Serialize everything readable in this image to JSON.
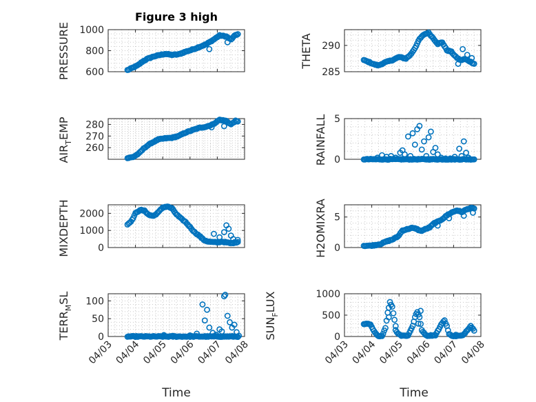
{
  "figure": {
    "title": "Figure 3 high",
    "marker_color": "#0072bd",
    "axis_color": "#262626",
    "grid_color": "#c8c8c8",
    "sample_interval_days": 0.0417
  },
  "chart_data": [
    {
      "type": "scatter",
      "id": "pressure",
      "title": "Figure 3 high",
      "ylabel": "PRESSURE",
      "ylim": [
        600,
        1000
      ],
      "yticks": [
        600,
        800,
        1000
      ],
      "xlabel": "",
      "grid": true,
      "x_start": "04/03 17:00",
      "x_end": "04/07 19:00",
      "xlim": [
        "04/03",
        "04/08"
      ],
      "profile": [
        [
          "04/03 17:00",
          615
        ],
        [
          "04/03 21:00",
          635
        ],
        [
          "04/04 02:00",
          660
        ],
        [
          "04/04 06:00",
          695
        ],
        [
          "04/04 10:00",
          720
        ],
        [
          "04/04 16:00",
          745
        ],
        [
          "04/04 22:00",
          760
        ],
        [
          "04/05 02:00",
          770
        ],
        [
          "04/05 08:00",
          760
        ],
        [
          "04/05 14:00",
          765
        ],
        [
          "04/05 20:00",
          790
        ],
        [
          "04/06 02:00",
          810
        ],
        [
          "04/06 08:00",
          835
        ],
        [
          "04/06 14:00",
          860
        ],
        [
          "04/06 20:00",
          900
        ],
        [
          "04/07 02:00",
          945
        ],
        [
          "04/07 08:00",
          935
        ],
        [
          "04/07 12:00",
          905
        ],
        [
          "04/07 16:00",
          950
        ],
        [
          "04/07 19:00",
          960
        ]
      ],
      "outliers": [
        [
          "04/06 17:00",
          815
        ],
        [
          "04/07 09:00",
          880
        ]
      ]
    },
    {
      "type": "scatter",
      "id": "theta",
      "ylabel": "THETA",
      "ylim": [
        285,
        293
      ],
      "yticks": [
        285,
        290
      ],
      "xlabel": "",
      "grid": true,
      "x_start": "04/03 17:00",
      "x_end": "04/07 19:00",
      "xlim": [
        "04/03",
        "04/08"
      ],
      "profile": [
        [
          "04/03 17:00",
          287.2
        ],
        [
          "04/03 22:00",
          286.8
        ],
        [
          "04/04 02:00",
          286.4
        ],
        [
          "04/04 06:00",
          286.2
        ],
        [
          "04/04 12:00",
          286.8
        ],
        [
          "04/04 18:00",
          287.2
        ],
        [
          "04/05 00:00",
          287.8
        ],
        [
          "04/05 06:00",
          287.5
        ],
        [
          "04/05 10:00",
          288.2
        ],
        [
          "04/05 14:00",
          289.5
        ],
        [
          "04/05 18:00",
          291.2
        ],
        [
          "04/05 22:00",
          292.1
        ],
        [
          "04/06 02:00",
          292.4
        ],
        [
          "04/06 06:00",
          291.4
        ],
        [
          "04/06 10:00",
          290.3
        ],
        [
          "04/06 14:00",
          290.6
        ],
        [
          "04/06 18:00",
          289.1
        ],
        [
          "04/06 22:00",
          288.8
        ],
        [
          "04/07 02:00",
          287.8
        ],
        [
          "04/07 06:00",
          287.2
        ],
        [
          "04/07 10:00",
          287.4
        ],
        [
          "04/07 14:00",
          287.0
        ],
        [
          "04/07 19:00",
          286.4
        ]
      ],
      "outliers": [
        [
          "04/07 04:00",
          286.5
        ],
        [
          "04/07 08:00",
          289.3
        ],
        [
          "04/07 12:00",
          288.2
        ],
        [
          "04/07 16:00",
          287.6
        ]
      ]
    },
    {
      "type": "scatter",
      "id": "airtemp",
      "ylabel_main": "AIR",
      "ylabel_sub": "T",
      "ylabel_tail": "EMP",
      "ylim": [
        250,
        285
      ],
      "yticks": [
        260,
        270,
        280
      ],
      "xlabel": "",
      "grid": true,
      "x_start": "04/03 17:00",
      "x_end": "04/07 19:00",
      "xlim": [
        "04/03",
        "04/08"
      ],
      "profile": [
        [
          "04/03 17:00",
          251
        ],
        [
          "04/03 22:00",
          252
        ],
        [
          "04/04 03:00",
          255
        ],
        [
          "04/04 08:00",
          260
        ],
        [
          "04/04 14:00",
          264
        ],
        [
          "04/04 20:00",
          267
        ],
        [
          "04/05 02:00",
          268
        ],
        [
          "04/05 08:00",
          268.5
        ],
        [
          "04/05 14:00",
          270
        ],
        [
          "04/05 20:00",
          273
        ],
        [
          "04/06 02:00",
          275
        ],
        [
          "04/06 08:00",
          277
        ],
        [
          "04/06 14:00",
          278
        ],
        [
          "04/06 20:00",
          280
        ],
        [
          "04/07 02:00",
          284
        ],
        [
          "04/07 08:00",
          283
        ],
        [
          "04/07 12:00",
          280
        ],
        [
          "04/07 16:00",
          283
        ],
        [
          "04/07 19:00",
          282
        ]
      ],
      "outliers": [
        [
          "04/06 19:00",
          277.5
        ],
        [
          "04/07 06:00",
          278.5
        ]
      ]
    },
    {
      "type": "scatter",
      "id": "rainfall",
      "ylabel": "RAINFALL",
      "ylim": [
        0,
        5
      ],
      "yticks": [
        0,
        5
      ],
      "xlabel": "",
      "grid": true,
      "x_start": "04/03 17:00",
      "x_end": "04/07 19:00",
      "xlim": [
        "04/03",
        "04/08"
      ],
      "profile": [
        [
          "04/03 17:00",
          0
        ],
        [
          "04/07 19:00",
          0
        ]
      ],
      "outliers": [
        [
          "04/04 05:00",
          0.2
        ],
        [
          "04/04 09:00",
          0.5
        ],
        [
          "04/04 13:00",
          0.3
        ],
        [
          "04/04 17:00",
          0.4
        ],
        [
          "04/04 21:00",
          0.2
        ],
        [
          "04/05 01:00",
          0.8
        ],
        [
          "04/05 03:00",
          1.1
        ],
        [
          "04/05 05:00",
          0.6
        ],
        [
          "04/05 08:00",
          2.8
        ],
        [
          "04/05 10:00",
          0.4
        ],
        [
          "04/05 12:00",
          3.2
        ],
        [
          "04/05 14:00",
          1.8
        ],
        [
          "04/05 16:00",
          3.7
        ],
        [
          "04/05 18:00",
          4.1
        ],
        [
          "04/05 20:00",
          1.2
        ],
        [
          "04/05 22:00",
          2.2
        ],
        [
          "04/06 00:00",
          0.4
        ],
        [
          "04/06 02:00",
          2.7
        ],
        [
          "04/06 04:00",
          3.4
        ],
        [
          "04/06 06:00",
          0.9
        ],
        [
          "04/06 08:00",
          1.4
        ],
        [
          "04/06 10:00",
          0.6
        ],
        [
          "04/06 13:00",
          0.2
        ],
        [
          "04/06 17:00",
          0.1
        ],
        [
          "04/06 21:00",
          0.1
        ],
        [
          "04/07 01:00",
          0.3
        ],
        [
          "04/07 05:00",
          1.3
        ],
        [
          "04/07 07:00",
          0.4
        ],
        [
          "04/07 09:00",
          2.2
        ],
        [
          "04/07 11:00",
          0.8
        ],
        [
          "04/07 13:00",
          0.2
        ]
      ]
    },
    {
      "type": "scatter",
      "id": "mixdepth",
      "ylabel": "MIXDEPTH",
      "ylim": [
        0,
        2500
      ],
      "yticks": [
        0,
        1000,
        2000
      ],
      "xlabel": "",
      "grid": true,
      "x_start": "04/03 17:00",
      "x_end": "04/07 19:00",
      "xlim": [
        "04/03",
        "04/08"
      ],
      "profile": [
        [
          "04/03 17:00",
          1350
        ],
        [
          "04/03 21:00",
          1600
        ],
        [
          "04/04 00:00",
          2000
        ],
        [
          "04/04 04:00",
          2200
        ],
        [
          "04/04 08:00",
          2150
        ],
        [
          "04/04 12:00",
          1900
        ],
        [
          "04/04 16:00",
          1850
        ],
        [
          "04/04 20:00",
          2050
        ],
        [
          "04/05 00:00",
          2350
        ],
        [
          "04/05 04:00",
          2400
        ],
        [
          "04/05 08:00",
          2300
        ],
        [
          "04/05 12:00",
          1950
        ],
        [
          "04/05 16:00",
          1700
        ],
        [
          "04/05 20:00",
          1500
        ],
        [
          "04/06 00:00",
          1200
        ],
        [
          "04/06 04:00",
          900
        ],
        [
          "04/06 08:00",
          700
        ],
        [
          "04/06 12:00",
          450
        ],
        [
          "04/06 16:00",
          350
        ],
        [
          "04/06 20:00",
          320
        ],
        [
          "04/07 00:00",
          300
        ],
        [
          "04/07 04:00",
          350
        ],
        [
          "04/07 08:00",
          300
        ],
        [
          "04/07 12:00",
          250
        ],
        [
          "04/07 16:00",
          300
        ],
        [
          "04/07 19:00",
          350
        ]
      ],
      "outliers": [
        [
          "04/06 21:00",
          800
        ],
        [
          "04/07 02:00",
          600
        ],
        [
          "04/07 06:00",
          900
        ],
        [
          "04/07 08:00",
          1300
        ],
        [
          "04/07 10:00",
          1100
        ],
        [
          "04/07 12:00",
          700
        ],
        [
          "04/07 14:00",
          500
        ],
        [
          "04/07 18:00",
          450
        ]
      ]
    },
    {
      "type": "scatter",
      "id": "h2omixra",
      "ylabel": "H2OMIXRA",
      "ylim": [
        0,
        7
      ],
      "yticks": [
        0,
        5
      ],
      "xlabel": "",
      "grid": true,
      "x_start": "04/03 17:00",
      "x_end": "04/07 19:00",
      "xlim": [
        "04/03",
        "04/08"
      ],
      "profile": [
        [
          "04/03 17:00",
          0.3
        ],
        [
          "04/03 22:00",
          0.3
        ],
        [
          "04/04 03:00",
          0.4
        ],
        [
          "04/04 08:00",
          0.6
        ],
        [
          "04/04 13:00",
          1.0
        ],
        [
          "04/04 18:00",
          1.3
        ],
        [
          "04/04 23:00",
          1.8
        ],
        [
          "04/05 03:00",
          2.8
        ],
        [
          "04/05 07:00",
          3.0
        ],
        [
          "04/05 11:00",
          3.2
        ],
        [
          "04/05 15:00",
          3.1
        ],
        [
          "04/05 19:00",
          2.7
        ],
        [
          "04/05 23:00",
          3.0
        ],
        [
          "04/06 03:00",
          3.3
        ],
        [
          "04/06 07:00",
          4.0
        ],
        [
          "04/06 11:00",
          4.3
        ],
        [
          "04/06 15:00",
          4.8
        ],
        [
          "04/06 19:00",
          5.4
        ],
        [
          "04/06 23:00",
          5.8
        ],
        [
          "04/07 03:00",
          6.1
        ],
        [
          "04/07 07:00",
          5.8
        ],
        [
          "04/07 11:00",
          6.2
        ],
        [
          "04/07 15:00",
          6.5
        ],
        [
          "04/07 19:00",
          6.3
        ]
      ],
      "outliers": [
        [
          "04/06 10:00",
          3.6
        ],
        [
          "04/06 20:00",
          4.8
        ],
        [
          "04/07 09:00",
          5.2
        ],
        [
          "04/07 17:00",
          5.7
        ]
      ]
    },
    {
      "type": "scatter",
      "id": "terrmsl",
      "ylabel_main": "TERR",
      "ylabel_sub": "M",
      "ylabel_tail": "SL",
      "ylim": [
        0,
        120
      ],
      "yticks": [
        0,
        50,
        100
      ],
      "xlabel": "Time",
      "grid": true,
      "x_start": "04/03 17:00",
      "x_end": "04/07 19:00",
      "xlim": [
        "04/03",
        "04/08"
      ],
      "xticks": [
        "04/03",
        "04/04",
        "04/05",
        "04/06",
        "04/07",
        "04/08"
      ],
      "profile": [
        [
          "04/03 17:00",
          0
        ],
        [
          "04/07 19:00",
          0
        ]
      ],
      "outliers": [
        [
          "04/05 01:00",
          4
        ],
        [
          "04/05 09:00",
          2
        ],
        [
          "04/06 00:00",
          3
        ],
        [
          "04/06 06:00",
          8
        ],
        [
          "04/06 11:00",
          90
        ],
        [
          "04/06 13:00",
          45
        ],
        [
          "04/06 15:00",
          75
        ],
        [
          "04/06 17:00",
          25
        ],
        [
          "04/06 20:00",
          10
        ],
        [
          "04/06 23:00",
          5
        ],
        [
          "04/07 02:00",
          20
        ],
        [
          "04/07 04:00",
          14
        ],
        [
          "04/07 06:00",
          113
        ],
        [
          "04/07 07:00",
          117
        ],
        [
          "04/07 09:00",
          58
        ],
        [
          "04/07 11:00",
          40
        ],
        [
          "04/07 13:00",
          25
        ],
        [
          "04/07 15:00",
          33
        ],
        [
          "04/07 17:00",
          12
        ],
        [
          "04/07 19:00",
          2
        ]
      ]
    },
    {
      "type": "scatter",
      "id": "sunflux",
      "ylabel_main": "SUN",
      "ylabel_sub": "F",
      "ylabel_tail": "LUX",
      "ylim": [
        0,
        1000
      ],
      "yticks": [
        0,
        500,
        1000
      ],
      "xlabel": "Time",
      "grid": true,
      "x_start": "04/03 17:00",
      "x_end": "04/07 19:00",
      "xlim": [
        "04/03",
        "04/08"
      ],
      "xticks": [
        "04/03",
        "04/04",
        "04/05",
        "04/06",
        "04/07",
        "04/08"
      ],
      "profile": [
        [
          "04/03 17:00",
          280
        ],
        [
          "04/03 20:00",
          300
        ],
        [
          "04/03 23:00",
          270
        ],
        [
          "04/04 02:00",
          120
        ],
        [
          "04/04 05:00",
          20
        ],
        [
          "04/04 09:00",
          10
        ],
        [
          "04/04 12:00",
          200
        ],
        [
          "04/04 14:00",
          550
        ],
        [
          "04/04 16:00",
          800
        ],
        [
          "04/04 18:00",
          700
        ],
        [
          "04/04 20:00",
          400
        ],
        [
          "04/04 22:00",
          100
        ],
        [
          "04/05 02:00",
          20
        ],
        [
          "04/05 08:00",
          20
        ],
        [
          "04/05 12:00",
          250
        ],
        [
          "04/05 14:00",
          450
        ],
        [
          "04/05 16:00",
          580
        ],
        [
          "04/05 18:00",
          450
        ],
        [
          "04/05 20:00",
          150
        ],
        [
          "04/06 00:00",
          20
        ],
        [
          "04/06 08:00",
          30
        ],
        [
          "04/06 12:00",
          220
        ],
        [
          "04/06 14:00",
          320
        ],
        [
          "04/06 16:00",
          380
        ],
        [
          "04/06 18:00",
          250
        ],
        [
          "04/06 20:00",
          50
        ],
        [
          "04/07 00:00",
          10
        ],
        [
          "04/07 08:00",
          20
        ],
        [
          "04/07 12:00",
          150
        ],
        [
          "04/07 15:00",
          250
        ],
        [
          "04/07 17:00",
          180
        ],
        [
          "04/07 19:00",
          120
        ]
      ],
      "outliers": [
        [
          "04/04 15:00",
          450
        ],
        [
          "04/05 17:00",
          300
        ],
        [
          "04/05 19:00",
          600
        ],
        [
          "04/04 21:00",
          150
        ],
        [
          "04/07 02:00",
          40
        ]
      ]
    }
  ]
}
